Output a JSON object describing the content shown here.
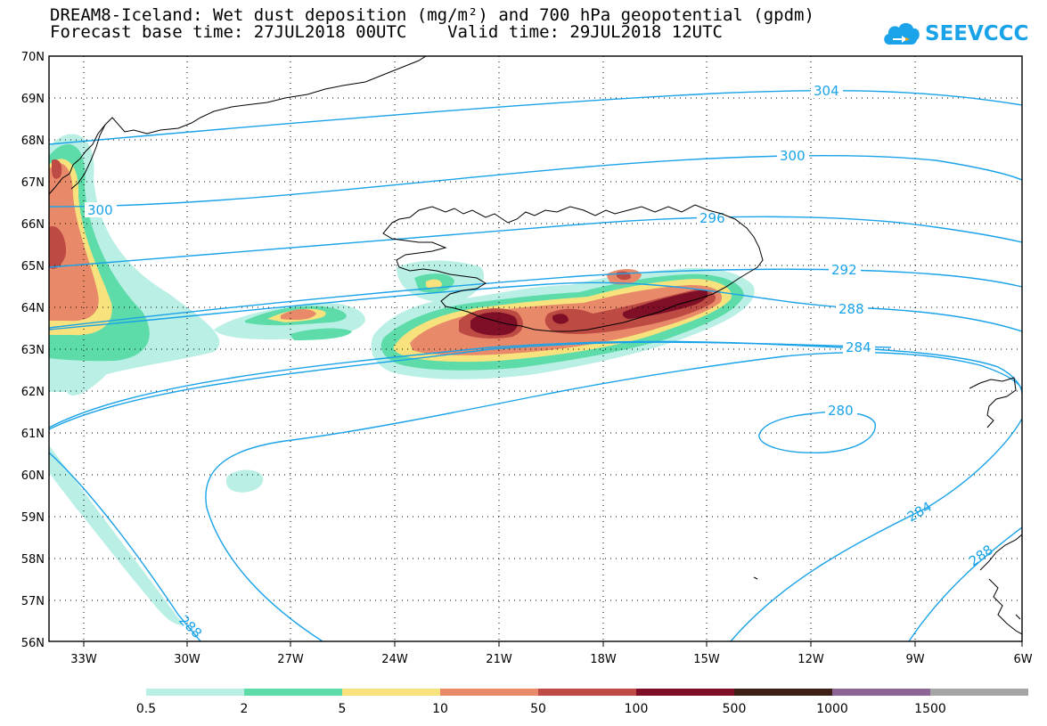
{
  "header": {
    "title_line1": "DREAM8-Iceland: Wet dust deposition (mg/m²) and 700 hPa geopotential (gpdm)",
    "title_line2": "Forecast base time: 27JUL2018 00UTC    Valid time: 29JUL2018 12UTC"
  },
  "logo": {
    "text": "SEEVCCC",
    "icon": "cloud-icon",
    "color": "#1aa3e8"
  },
  "map": {
    "lat_labels": [
      "70N",
      "69N",
      "68N",
      "67N",
      "66N",
      "65N",
      "64N",
      "63N",
      "62N",
      "61N",
      "60N",
      "59N",
      "58N",
      "57N",
      "56N"
    ],
    "lon_labels": [
      "33W",
      "30W",
      "27W",
      "24W",
      "21W",
      "18W",
      "15W",
      "12W",
      "9W",
      "6W"
    ],
    "grid": true,
    "coastline_color": "#000000",
    "contour_color": "#1aa3e8",
    "contour_labels": [
      "304",
      "300",
      "300",
      "296",
      "292",
      "288",
      "284",
      "280",
      "284",
      "288",
      "288"
    ]
  },
  "legend": {
    "colors": [
      "#b9efe4",
      "#5ddcaa",
      "#f7e27d",
      "#e8896a",
      "#bd4a43",
      "#7e0f26",
      "#3e1f16",
      "#8c6496",
      "#a5a5a5"
    ],
    "labels": [
      "0.5",
      "2",
      "5",
      "10",
      "50",
      "100",
      "500",
      "1000",
      "1500"
    ]
  }
}
